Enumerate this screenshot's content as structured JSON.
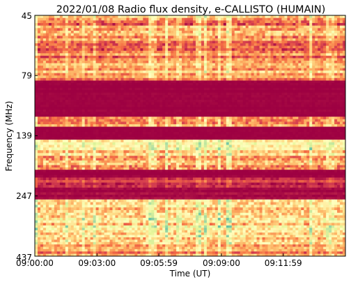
{
  "chart_data": {
    "type": "heatmap",
    "title": "2022/01/08  Radio flux density, e-CALLISTO (HUMAIN)",
    "xlabel": "Time (UT)",
    "ylabel": "Frequency (MHz)",
    "x_ticks": [
      "09:00:00",
      "09:03:00",
      "09:05:59",
      "09:09:00",
      "09:11:59"
    ],
    "y_ticks": [
      "45",
      "79",
      "139",
      "247",
      "437"
    ],
    "y_range_mhz": [
      45,
      437
    ],
    "x_range": [
      "09:00:00",
      "09:14:59"
    ],
    "colormap": [
      "#9e0142",
      "#d53e4f",
      "#f46d43",
      "#fdae61",
      "#fee08b",
      "#ffffbf",
      "#e6f598",
      "#abdda4",
      "#66c2a5"
    ],
    "intensity_bands": [
      {
        "f_from": 45,
        "f_to": 58,
        "level": 0.32,
        "variability": 0.3
      },
      {
        "f_from": 58,
        "f_to": 72,
        "level": 0.28,
        "variability": 0.25
      },
      {
        "f_from": 72,
        "f_to": 79,
        "level": 0.38,
        "variability": 0.25
      },
      {
        "f_from": 79,
        "f_to": 84,
        "level": 0.3,
        "variability": 0.2
      },
      {
        "f_from": 84,
        "f_to": 120,
        "level": 0.0,
        "variability": 0.02
      },
      {
        "f_from": 120,
        "f_to": 130,
        "level": 0.28,
        "variability": 0.28
      },
      {
        "f_from": 130,
        "f_to": 146,
        "level": 0.0,
        "variability": 0.02
      },
      {
        "f_from": 146,
        "f_to": 160,
        "level": 0.58,
        "variability": 0.25
      },
      {
        "f_from": 160,
        "f_to": 175,
        "level": 0.52,
        "variability": 0.3
      },
      {
        "f_from": 175,
        "f_to": 200,
        "level": 0.38,
        "variability": 0.3
      },
      {
        "f_from": 200,
        "f_to": 214,
        "level": 0.0,
        "variability": 0.03
      },
      {
        "f_from": 214,
        "f_to": 232,
        "level": 0.12,
        "variability": 0.12
      },
      {
        "f_from": 232,
        "f_to": 258,
        "level": 0.02,
        "variability": 0.05
      },
      {
        "f_from": 258,
        "f_to": 300,
        "level": 0.4,
        "variability": 0.3
      },
      {
        "f_from": 300,
        "f_to": 340,
        "level": 0.52,
        "variability": 0.36
      },
      {
        "f_from": 340,
        "f_to": 400,
        "level": 0.58,
        "variability": 0.34
      },
      {
        "f_from": 400,
        "f_to": 437,
        "level": 0.3,
        "variability": 0.25
      }
    ]
  }
}
